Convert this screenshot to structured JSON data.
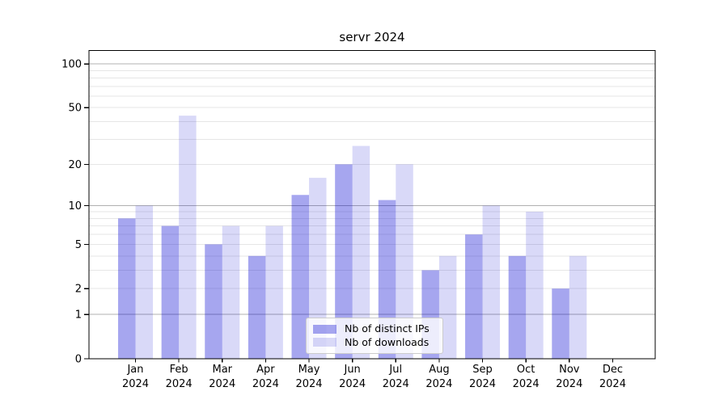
{
  "chart_data": {
    "type": "bar",
    "title": "servr 2024",
    "year": "2024",
    "categories": [
      "Jan",
      "Feb",
      "Mar",
      "Apr",
      "May",
      "Jun",
      "Jul",
      "Aug",
      "Sep",
      "Oct",
      "Nov",
      "Dec"
    ],
    "series": [
      {
        "name": "Nb of distinct IPs",
        "color": "rgba(0,0,210,0.35)",
        "values": [
          8,
          7,
          5,
          4,
          12,
          20,
          11,
          3,
          6,
          4,
          2,
          0
        ]
      },
      {
        "name": "Nb of downloads",
        "color": "rgba(0,0,210,0.15)",
        "values": [
          10,
          44,
          7,
          7,
          16,
          27,
          20,
          4,
          10,
          9,
          4,
          0
        ]
      }
    ],
    "xlabel": "",
    "ylabel": "",
    "y_axis": {
      "scale": "log1p",
      "ticks": [
        0,
        1,
        2,
        5,
        10,
        20,
        50,
        100
      ],
      "major_gridlines": [
        1,
        10,
        100
      ],
      "minor_gridlines": [
        2,
        3,
        4,
        5,
        6,
        7,
        8,
        9,
        20,
        30,
        40,
        50,
        60,
        70,
        80,
        90
      ],
      "ylim": [
        0,
        125
      ]
    },
    "grid": true,
    "legend_position": "lower-center"
  },
  "colors": {
    "grid_major": "#b0b0b0",
    "grid_minor": "#e6e6e6",
    "axis": "#000000",
    "text": "#000000",
    "background": "#ffffff"
  }
}
